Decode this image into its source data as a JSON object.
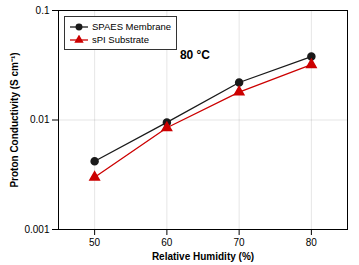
{
  "chart_data": {
    "type": "line",
    "x": [
      50,
      60,
      70,
      80
    ],
    "series": [
      {
        "name": "SPAES Membrane",
        "color": "#1a1a1a",
        "marker": "circle",
        "values": [
          0.0042,
          0.0095,
          0.022,
          0.038
        ]
      },
      {
        "name": "sPI Substrate",
        "color": "#cc0000",
        "marker": "triangle",
        "values": [
          0.003,
          0.0085,
          0.018,
          0.032
        ]
      }
    ],
    "xlabel": "Relative Humidity (%)",
    "ylabel": "Proton Conductivity (S cm⁻¹)",
    "annotations": [
      "80 °C"
    ],
    "xlim": [
      45,
      85
    ],
    "xticks": [
      50,
      60,
      70,
      80
    ],
    "ylim": [
      0.001,
      0.1
    ],
    "yticks": [
      0.001,
      0.01,
      0.1
    ],
    "log": "y",
    "grid": true,
    "legend": "upper left"
  }
}
